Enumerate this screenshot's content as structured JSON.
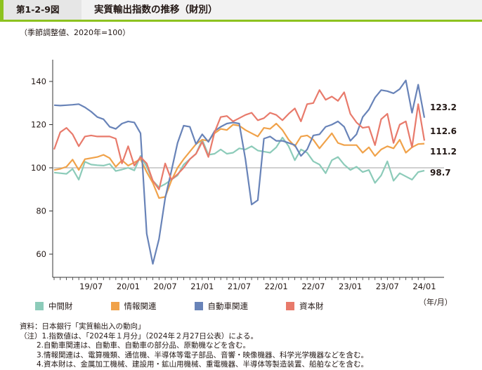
{
  "header": {
    "figure_number": "第1-2-9図",
    "title": "実質輸出指数の推移（財別）"
  },
  "unit_note": "（季節調整値、2020年=100）",
  "legend_unit": "（年/月）",
  "notes": [
    "資料：日本銀行「実質輸出入の動向」",
    "（注）1.指数値は、「2024年１月分」（2024年２月27日公表）による。",
    "2.自動車関連は、自動車、自動車の部分品、原動機などを含む。",
    "3.情報関連は、電算機類、通信機、半導体等電子部品、音響・映像機器、科学光学機器などを含む。",
    "4.資本財は、金属加工機械、建設用・鉱山用機械、重電機器、半導体等製造装置、船舶などを含む。"
  ],
  "chart_data": {
    "type": "line",
    "title": "",
    "xlabel": "",
    "ylabel": "",
    "ylim": [
      45,
      150
    ],
    "yticks": [
      60,
      80,
      100,
      120,
      140
    ],
    "reference_line": 100,
    "x_start": "2019/01",
    "xtick_labels": [
      "19/07",
      "20/01",
      "20/07",
      "21/01",
      "21/07",
      "22/01",
      "22/07",
      "23/01",
      "23/07",
      "24/01"
    ],
    "xtick_index": [
      6,
      12,
      18,
      24,
      30,
      36,
      42,
      48,
      54,
      60
    ],
    "end_labels": [
      "123.2",
      "112.6",
      "111.2",
      "98.7"
    ],
    "series": [
      {
        "name": "中間財",
        "color": "#8ccbb9",
        "values": [
          97.8,
          97.5,
          97.2,
          99.5,
          94.5,
          102.8,
          101.5,
          101.2,
          101.0,
          101.8,
          98.5,
          99.2,
          100.0,
          98.8,
          105.5,
          100.5,
          94.0,
          91.0,
          92.5,
          94.5,
          96.5,
          101.5,
          104.0,
          106.5,
          113.0,
          106.0,
          106.5,
          108.5,
          106.5,
          107.0,
          109.0,
          108.5,
          110.0,
          108.0,
          107.5,
          107.0,
          109.5,
          114.0,
          110.0,
          103.5,
          108.5,
          107.0,
          103.0,
          101.5,
          97.5,
          103.5,
          105.0,
          101.5,
          99.0,
          100.5,
          98.0,
          99.0,
          93.0,
          96.5,
          103.0,
          94.0,
          97.5,
          96.0,
          94.5,
          98.0,
          98.7
        ]
      },
      {
        "name": "情報関連",
        "color": "#f0a24a",
        "values": [
          99.0,
          99.5,
          100.5,
          103.8,
          99.0,
          104.0,
          104.5,
          105.0,
          106.0,
          104.5,
          100.5,
          103.5,
          101.0,
          102.5,
          104.0,
          98.0,
          93.0,
          86.0,
          86.5,
          94.0,
          100.0,
          104.0,
          107.5,
          111.0,
          113.0,
          112.5,
          116.0,
          118.0,
          117.5,
          120.0,
          119.5,
          117.5,
          116.0,
          114.5,
          118.5,
          118.0,
          120.5,
          117.5,
          113.0,
          110.0,
          114.5,
          115.0,
          113.0,
          109.0,
          112.5,
          116.0,
          111.5,
          110.5,
          110.5,
          110.5,
          107.0,
          109.5,
          105.5,
          108.5,
          110.0,
          109.0,
          113.0,
          107.0,
          109.5,
          111.0,
          111.2
        ]
      },
      {
        "name": "自動車関連",
        "color": "#6883b8",
        "values": [
          129.0,
          128.8,
          129.0,
          129.2,
          129.5,
          128.0,
          126.0,
          123.5,
          122.5,
          119.0,
          118.0,
          120.5,
          121.5,
          121.0,
          116.0,
          69.5,
          55.5,
          67.0,
          86.0,
          98.5,
          111.5,
          119.5,
          119.0,
          111.0,
          115.5,
          112.0,
          117.0,
          119.0,
          120.5,
          121.0,
          120.5,
          104.0,
          83.0,
          85.0,
          113.5,
          114.5,
          112.5,
          112.5,
          111.5,
          110.5,
          105.5,
          108.5,
          115.0,
          115.5,
          119.0,
          120.0,
          121.5,
          119.0,
          112.5,
          115.5,
          123.5,
          127.0,
          132.5,
          136.0,
          135.5,
          134.5,
          136.5,
          140.5,
          125.5,
          138.5,
          123.2
        ]
      },
      {
        "name": "資本財",
        "color": "#e87a6b",
        "values": [
          108.5,
          116.5,
          118.5,
          115.5,
          110.0,
          114.5,
          115.0,
          114.5,
          114.5,
          114.5,
          113.5,
          102.0,
          110.0,
          101.0,
          105.0,
          102.0,
          94.0,
          90.0,
          102.0,
          94.5,
          97.0,
          100.0,
          104.0,
          106.5,
          112.0,
          105.0,
          116.5,
          123.5,
          124.0,
          121.5,
          123.0,
          124.5,
          125.5,
          122.0,
          123.0,
          125.5,
          124.5,
          122.0,
          125.0,
          127.5,
          121.5,
          129.5,
          130.0,
          136.0,
          131.5,
          133.0,
          131.0,
          135.0,
          125.0,
          121.0,
          118.5,
          119.0,
          110.5,
          122.5,
          125.0,
          111.5,
          120.0,
          121.5,
          109.5,
          129.5,
          112.6
        ]
      }
    ]
  }
}
